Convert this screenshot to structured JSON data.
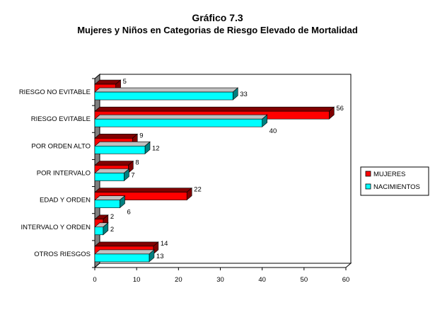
{
  "chart_data": {
    "type": "bar",
    "orientation": "horizontal",
    "style": "3d",
    "title": "Gráfico 7.3",
    "subtitle": "Mujeres y Niños en Categorias de Riesgo Elevado de Mortalidad",
    "categories": [
      "RIESGO NO EVITABLE",
      "RIESGO EVITABLE",
      "POR ORDEN ALTO",
      "POR INTERVALO",
      "EDAD Y ORDEN",
      "INTERVALO Y ORDEN",
      "OTROS RIESGOS"
    ],
    "series": [
      {
        "name": "MUJERES",
        "values": [
          5,
          56,
          9,
          8,
          22,
          2,
          14
        ],
        "color": "#ff0000",
        "top_color": "#800000",
        "side_color": "#800000"
      },
      {
        "name": "NACIMIENTOS",
        "values": [
          33,
          40,
          12,
          7,
          6,
          2,
          13
        ],
        "color": "#00ffff",
        "top_color": "#c0c0c0",
        "side_color": "#008080"
      }
    ],
    "xlim": [
      0,
      60
    ],
    "xticks": [
      "0",
      "10",
      "20",
      "30",
      "40",
      "50",
      "60"
    ],
    "grid": false,
    "legend": "right"
  }
}
